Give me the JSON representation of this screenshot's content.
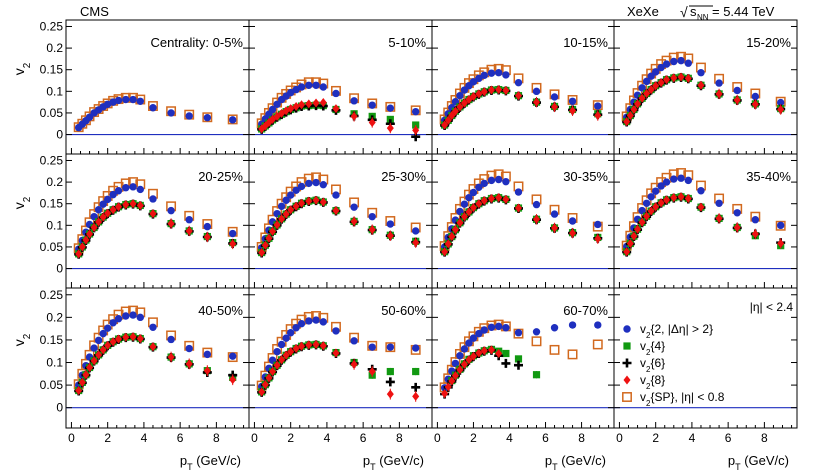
{
  "chart_data": {
    "type": "scatter",
    "experiment": "CMS",
    "system": "XeXe",
    "energy_prefix": "√",
    "energy_label": "s",
    "energy_subscript": "NN",
    "energy_value": " = 5.44 TeV",
    "ylabel": "v",
    "ylabel_sub": "2",
    "xlabel": "p",
    "xlabel_sub": "T",
    "xlabel_unit": " (GeV/c)",
    "xlim": [
      -0.3,
      9.8
    ],
    "ylim": [
      -0.045,
      0.265
    ],
    "x_ticks": [
      "0",
      "2",
      "4",
      "6",
      "8"
    ],
    "y_ticks": [
      "0",
      "0.05",
      "0.1",
      "0.15",
      "0.2",
      "0.25"
    ],
    "eta_note": "|η| < 2.4",
    "legend": [
      {
        "key": "v2_2",
        "sub": "2",
        "text": "{2, |Δη| > 2}",
        "color": "#1f2fbf",
        "marker": "circle"
      },
      {
        "key": "v2_4",
        "sub": "2",
        "text": "{4}",
        "color": "#119911",
        "marker": "square"
      },
      {
        "key": "v2_6",
        "sub": "2",
        "text": "{6}",
        "color": "#000000",
        "marker": "cross"
      },
      {
        "key": "v2_8",
        "sub": "2",
        "text": "{8}",
        "color": "#ee1111",
        "marker": "diamond"
      },
      {
        "key": "v2_sp",
        "sub": "2",
        "text": "{SP}, |η| < 0.8",
        "color": "#d2691e",
        "marker": "open-square"
      }
    ],
    "pt": [
      0.4,
      0.6,
      0.8,
      1.0,
      1.25,
      1.5,
      1.75,
      2.0,
      2.3,
      2.6,
      3.0,
      3.4,
      3.8,
      4.5,
      5.5,
      6.5,
      7.5,
      8.9
    ],
    "panels": [
      {
        "label": "Centrality: 0-5%",
        "v2_2": [
          0.016,
          0.024,
          0.032,
          0.04,
          0.05,
          0.057,
          0.064,
          0.07,
          0.075,
          0.079,
          0.081,
          0.081,
          0.077,
          0.062,
          0.05,
          0.043,
          0.039,
          0.034
        ],
        "v2_sp": [
          0.017,
          0.025,
          0.033,
          0.042,
          0.052,
          0.059,
          0.066,
          0.072,
          0.078,
          0.082,
          0.085,
          0.085,
          0.081,
          0.066,
          0.054,
          0.046,
          0.04,
          0.035
        ],
        "v2_4": null,
        "v2_6": null,
        "v2_8": null
      },
      {
        "label": "5-10%",
        "v2_2": [
          0.024,
          0.036,
          0.047,
          0.058,
          0.07,
          0.081,
          0.089,
          0.097,
          0.104,
          0.11,
          0.114,
          0.114,
          0.11,
          0.095,
          0.078,
          0.068,
          0.061,
          0.053
        ],
        "v2_sp": [
          0.026,
          0.038,
          0.05,
          0.061,
          0.074,
          0.085,
          0.094,
          0.102,
          0.109,
          0.116,
          0.121,
          0.121,
          0.118,
          0.101,
          0.084,
          0.072,
          0.064,
          0.056
        ],
        "v2_4": [
          0.013,
          0.02,
          0.027,
          0.034,
          0.041,
          0.047,
          0.053,
          0.058,
          0.062,
          0.066,
          0.067,
          0.068,
          0.067,
          0.058,
          0.048,
          0.042,
          0.035,
          0.022
        ],
        "v2_6": [
          0.012,
          0.019,
          0.026,
          0.033,
          0.04,
          0.046,
          0.052,
          0.057,
          0.061,
          0.065,
          0.066,
          0.067,
          0.066,
          0.056,
          0.043,
          0.034,
          0.025,
          -0.005
        ],
        "v2_8": [
          0.013,
          0.02,
          0.028,
          0.035,
          0.042,
          0.049,
          0.055,
          0.06,
          0.065,
          0.069,
          0.071,
          0.073,
          0.074,
          0.06,
          0.042,
          0.028,
          0.015,
          0.01
        ]
      },
      {
        "label": "10-15%",
        "v2_2": [
          0.033,
          0.048,
          0.062,
          0.076,
          0.09,
          0.103,
          0.113,
          0.122,
          0.13,
          0.137,
          0.142,
          0.143,
          0.138,
          0.12,
          0.1,
          0.087,
          0.077,
          0.066
        ],
        "v2_sp": [
          0.035,
          0.051,
          0.066,
          0.08,
          0.095,
          0.108,
          0.119,
          0.128,
          0.137,
          0.144,
          0.15,
          0.152,
          0.149,
          0.13,
          0.108,
          0.093,
          0.08,
          0.068
        ],
        "v2_4": [
          0.022,
          0.033,
          0.044,
          0.054,
          0.064,
          0.073,
          0.081,
          0.088,
          0.094,
          0.099,
          0.103,
          0.104,
          0.102,
          0.09,
          0.075,
          0.065,
          0.058,
          0.048
        ],
        "v2_6": [
          0.021,
          0.032,
          0.043,
          0.053,
          0.063,
          0.072,
          0.08,
          0.087,
          0.093,
          0.098,
          0.102,
          0.103,
          0.101,
          0.089,
          0.074,
          0.064,
          0.057,
          0.046
        ],
        "v2_8": [
          0.022,
          0.033,
          0.044,
          0.054,
          0.064,
          0.073,
          0.081,
          0.088,
          0.094,
          0.099,
          0.103,
          0.104,
          0.102,
          0.09,
          0.075,
          0.064,
          0.055,
          0.044
        ]
      },
      {
        "label": "15-20%",
        "v2_2": [
          0.04,
          0.058,
          0.075,
          0.091,
          0.108,
          0.123,
          0.135,
          0.145,
          0.155,
          0.163,
          0.169,
          0.171,
          0.165,
          0.143,
          0.119,
          0.102,
          0.088,
          0.074
        ],
        "v2_sp": [
          0.042,
          0.061,
          0.079,
          0.096,
          0.113,
          0.128,
          0.141,
          0.152,
          0.163,
          0.171,
          0.178,
          0.18,
          0.176,
          0.155,
          0.129,
          0.11,
          0.095,
          0.076
        ],
        "v2_4": [
          0.03,
          0.044,
          0.058,
          0.071,
          0.084,
          0.095,
          0.104,
          0.113,
          0.12,
          0.127,
          0.131,
          0.133,
          0.13,
          0.114,
          0.094,
          0.08,
          0.071,
          0.06
        ],
        "v2_6": [
          0.029,
          0.043,
          0.057,
          0.07,
          0.083,
          0.094,
          0.103,
          0.112,
          0.119,
          0.126,
          0.13,
          0.132,
          0.129,
          0.113,
          0.093,
          0.079,
          0.07,
          0.059
        ],
        "v2_8": [
          0.03,
          0.044,
          0.058,
          0.071,
          0.084,
          0.095,
          0.104,
          0.113,
          0.12,
          0.127,
          0.131,
          0.133,
          0.13,
          0.114,
          0.094,
          0.08,
          0.07,
          0.058
        ]
      },
      {
        "label": "20-25%",
        "v2_2": [
          0.045,
          0.065,
          0.084,
          0.102,
          0.12,
          0.136,
          0.149,
          0.16,
          0.171,
          0.18,
          0.187,
          0.189,
          0.183,
          0.161,
          0.134,
          0.113,
          0.097,
          0.081
        ],
        "v2_sp": [
          0.047,
          0.068,
          0.088,
          0.107,
          0.126,
          0.142,
          0.156,
          0.168,
          0.18,
          0.189,
          0.197,
          0.2,
          0.195,
          0.173,
          0.144,
          0.122,
          0.103,
          0.085
        ],
        "v2_4": [
          0.034,
          0.05,
          0.066,
          0.08,
          0.095,
          0.108,
          0.119,
          0.128,
          0.136,
          0.143,
          0.148,
          0.15,
          0.146,
          0.127,
          0.104,
          0.087,
          0.074,
          0.06
        ],
        "v2_6": [
          0.033,
          0.049,
          0.065,
          0.079,
          0.094,
          0.107,
          0.118,
          0.127,
          0.135,
          0.142,
          0.147,
          0.149,
          0.145,
          0.126,
          0.103,
          0.086,
          0.073,
          0.058
        ],
        "v2_8": [
          0.034,
          0.05,
          0.066,
          0.08,
          0.095,
          0.108,
          0.119,
          0.128,
          0.136,
          0.143,
          0.148,
          0.15,
          0.146,
          0.127,
          0.104,
          0.087,
          0.073,
          0.057
        ]
      },
      {
        "label": "25-30%",
        "v2_2": [
          0.048,
          0.069,
          0.089,
          0.108,
          0.127,
          0.144,
          0.158,
          0.17,
          0.181,
          0.19,
          0.197,
          0.199,
          0.194,
          0.17,
          0.142,
          0.12,
          0.103,
          0.087
        ],
        "v2_sp": [
          0.05,
          0.072,
          0.093,
          0.113,
          0.133,
          0.15,
          0.165,
          0.178,
          0.19,
          0.2,
          0.208,
          0.211,
          0.206,
          0.183,
          0.153,
          0.129,
          0.11,
          0.095
        ],
        "v2_4": [
          0.037,
          0.054,
          0.07,
          0.086,
          0.101,
          0.115,
          0.126,
          0.136,
          0.144,
          0.151,
          0.156,
          0.158,
          0.154,
          0.134,
          0.109,
          0.09,
          0.077,
          0.063
        ],
        "v2_6": [
          0.036,
          0.053,
          0.069,
          0.085,
          0.1,
          0.114,
          0.125,
          0.135,
          0.143,
          0.15,
          0.155,
          0.157,
          0.153,
          0.133,
          0.108,
          0.089,
          0.076,
          0.061
        ],
        "v2_8": [
          0.037,
          0.054,
          0.07,
          0.086,
          0.101,
          0.115,
          0.126,
          0.136,
          0.144,
          0.151,
          0.156,
          0.158,
          0.154,
          0.134,
          0.109,
          0.09,
          0.076,
          0.06
        ]
      },
      {
        "label": "30-35%",
        "v2_2": [
          0.05,
          0.072,
          0.092,
          0.112,
          0.132,
          0.149,
          0.164,
          0.176,
          0.188,
          0.197,
          0.204,
          0.206,
          0.201,
          0.177,
          0.148,
          0.126,
          0.11,
          0.102
        ],
        "v2_sp": [
          0.052,
          0.075,
          0.096,
          0.117,
          0.138,
          0.155,
          0.171,
          0.184,
          0.197,
          0.207,
          0.215,
          0.218,
          0.213,
          0.19,
          0.16,
          0.136,
          0.117,
          0.097
        ],
        "v2_4": [
          0.039,
          0.057,
          0.074,
          0.09,
          0.106,
          0.12,
          0.131,
          0.141,
          0.15,
          0.157,
          0.162,
          0.164,
          0.16,
          0.14,
          0.114,
          0.094,
          0.083,
          0.072
        ],
        "v2_6": [
          0.038,
          0.056,
          0.073,
          0.089,
          0.105,
          0.119,
          0.13,
          0.14,
          0.149,
          0.156,
          0.161,
          0.163,
          0.159,
          0.139,
          0.113,
          0.093,
          0.082,
          0.07
        ],
        "v2_8": [
          0.039,
          0.057,
          0.074,
          0.09,
          0.106,
          0.12,
          0.131,
          0.141,
          0.15,
          0.157,
          0.162,
          0.164,
          0.16,
          0.14,
          0.114,
          0.094,
          0.082,
          0.069
        ]
      },
      {
        "label": "35-40%",
        "v2_2": [
          0.051,
          0.073,
          0.094,
          0.114,
          0.134,
          0.151,
          0.166,
          0.179,
          0.191,
          0.2,
          0.207,
          0.209,
          0.204,
          0.18,
          0.151,
          0.129,
          0.113,
          0.1
        ],
        "v2_sp": [
          0.053,
          0.076,
          0.098,
          0.119,
          0.14,
          0.158,
          0.174,
          0.187,
          0.2,
          0.21,
          0.218,
          0.221,
          0.216,
          0.192,
          0.162,
          0.138,
          0.12,
          0.099
        ],
        "v2_4": [
          0.039,
          0.058,
          0.075,
          0.091,
          0.107,
          0.121,
          0.133,
          0.143,
          0.152,
          0.159,
          0.164,
          0.166,
          0.162,
          0.142,
          0.116,
          0.095,
          0.076,
          0.053
        ],
        "v2_6": [
          0.038,
          0.057,
          0.074,
          0.09,
          0.106,
          0.12,
          0.132,
          0.142,
          0.151,
          0.158,
          0.163,
          0.165,
          0.161,
          0.141,
          0.115,
          0.094,
          0.08,
          0.06
        ],
        "v2_8": [
          0.039,
          0.058,
          0.075,
          0.091,
          0.107,
          0.121,
          0.133,
          0.143,
          0.152,
          0.159,
          0.164,
          0.166,
          0.162,
          0.142,
          0.116,
          0.095,
          0.08,
          0.058
        ]
      },
      {
        "label": "40-50%",
        "v2_2": [
          0.05,
          0.072,
          0.093,
          0.112,
          0.132,
          0.149,
          0.164,
          0.176,
          0.188,
          0.197,
          0.203,
          0.205,
          0.2,
          0.178,
          0.151,
          0.131,
          0.118,
          0.114
        ],
        "v2_sp": [
          0.052,
          0.075,
          0.097,
          0.117,
          0.138,
          0.155,
          0.171,
          0.184,
          0.196,
          0.206,
          0.213,
          0.215,
          0.211,
          0.189,
          0.16,
          0.137,
          0.122,
          0.112
        ],
        "v2_4": [
          0.038,
          0.056,
          0.073,
          0.089,
          0.104,
          0.117,
          0.128,
          0.138,
          0.146,
          0.152,
          0.156,
          0.157,
          0.153,
          0.135,
          0.112,
          0.097,
          0.082,
          0.067
        ],
        "v2_6": [
          0.037,
          0.055,
          0.072,
          0.088,
          0.103,
          0.116,
          0.127,
          0.137,
          0.145,
          0.151,
          0.155,
          0.156,
          0.152,
          0.134,
          0.111,
          0.096,
          0.078,
          0.072
        ],
        "v2_8": [
          0.038,
          0.056,
          0.073,
          0.089,
          0.104,
          0.117,
          0.128,
          0.138,
          0.146,
          0.152,
          0.156,
          0.157,
          0.153,
          0.135,
          0.112,
          0.097,
          0.082,
          0.062
        ]
      },
      {
        "label": "50-60%",
        "v2_2": [
          0.047,
          0.068,
          0.087,
          0.105,
          0.124,
          0.14,
          0.154,
          0.166,
          0.177,
          0.186,
          0.192,
          0.194,
          0.19,
          0.17,
          0.148,
          0.134,
          0.134,
          0.132
        ],
        "v2_sp": [
          0.049,
          0.071,
          0.091,
          0.11,
          0.13,
          0.146,
          0.161,
          0.174,
          0.186,
          0.195,
          0.201,
          0.203,
          0.199,
          0.179,
          0.155,
          0.137,
          0.134,
          0.128
        ],
        "v2_4": [
          0.035,
          0.051,
          0.066,
          0.08,
          0.094,
          0.106,
          0.116,
          0.124,
          0.131,
          0.136,
          0.139,
          0.14,
          0.137,
          0.122,
          0.1,
          0.072,
          0.08,
          0.08
        ],
        "v2_6": [
          0.034,
          0.05,
          0.065,
          0.079,
          0.093,
          0.105,
          0.115,
          0.123,
          0.13,
          0.135,
          0.138,
          0.139,
          0.136,
          0.12,
          0.098,
          0.085,
          0.057,
          0.045
        ],
        "v2_8": [
          0.035,
          0.051,
          0.066,
          0.08,
          0.094,
          0.106,
          0.116,
          0.124,
          0.131,
          0.136,
          0.139,
          0.14,
          0.137,
          0.121,
          0.096,
          0.08,
          0.03,
          0.025
        ]
      },
      {
        "label": "60-70%",
        "v2_2": [
          0.044,
          0.063,
          0.081,
          0.098,
          0.115,
          0.13,
          0.143,
          0.154,
          0.164,
          0.172,
          0.178,
          0.18,
          0.177,
          0.166,
          0.168,
          0.177,
          0.183,
          0.183
        ],
        "v2_sp": [
          0.045,
          0.065,
          0.084,
          0.101,
          0.119,
          0.134,
          0.147,
          0.158,
          0.168,
          0.176,
          0.182,
          0.184,
          0.18,
          0.164,
          0.147,
          0.128,
          0.118,
          0.14
        ],
        "v2_4": [
          null,
          null,
          0.06,
          0.072,
          0.085,
          0.097,
          0.107,
          0.115,
          0.121,
          0.126,
          0.129,
          0.125,
          0.12,
          0.108,
          0.073,
          null,
          null,
          null
        ],
        "v2_6": [
          0.03,
          0.045,
          0.058,
          0.07,
          0.083,
          0.095,
          0.105,
          0.113,
          0.12,
          0.125,
          0.127,
          0.115,
          0.098,
          0.094,
          null,
          null,
          null,
          null
        ],
        "v2_8": [
          0.031,
          0.046,
          0.059,
          0.071,
          0.084,
          0.096,
          0.106,
          0.114,
          0.121,
          0.126,
          0.128,
          0.12,
          null,
          null,
          null,
          null,
          null,
          null
        ]
      }
    ]
  }
}
